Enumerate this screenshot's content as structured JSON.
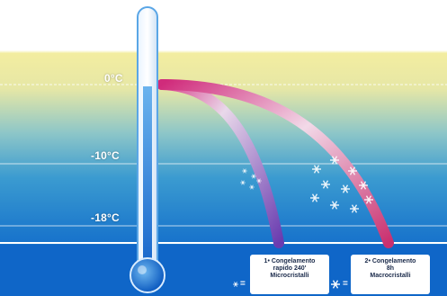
{
  "temperatures": {
    "zero": "0°C",
    "minus_ten": "-10°C",
    "minus_eighteen": "-18°C"
  },
  "legend": [
    {
      "lines": [
        "1• Congelamento",
        "rapido 240'",
        "Microcristalli"
      ],
      "key": "="
    },
    {
      "lines": [
        "2• Congelamento",
        "8h",
        "Macrocristalli"
      ],
      "key": "="
    }
  ],
  "colors": {
    "warm_band": "#f1ea9a",
    "cold_band": "#0f66c8",
    "curve_fast": "#7a4fb8",
    "curve_slow": "#d8337e",
    "thermometer_bulb": "#1b74d8"
  },
  "icons": [
    "snowflake-icon",
    "thermometer-icon"
  ]
}
